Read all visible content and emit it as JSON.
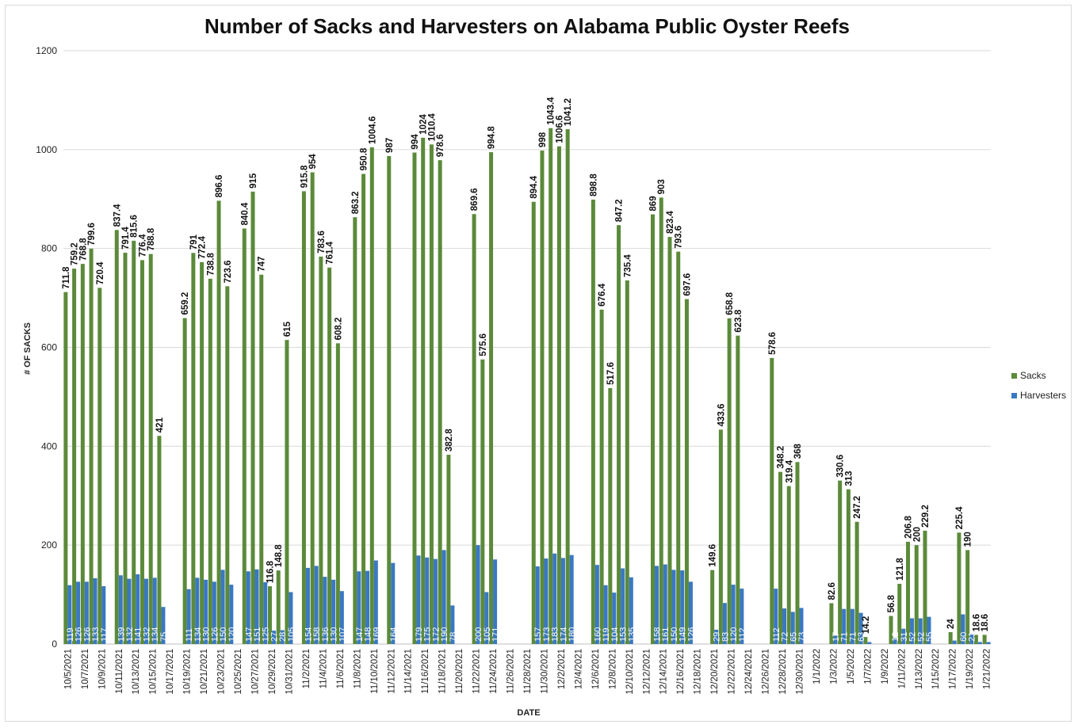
{
  "chart_data": {
    "type": "bar",
    "title": "Number of Sacks and Harvesters on Alabama Public Oyster Reefs",
    "xlabel": "DATE",
    "ylabel": "# OF SACKS",
    "ylim": [
      0,
      1200
    ],
    "yticks": [
      0,
      200,
      400,
      600,
      800,
      1000,
      1200
    ],
    "grid": true,
    "legend_position": "right",
    "colors": {
      "Sacks": "#5b8a3a",
      "Harvesters": "#3a78c2"
    },
    "categories": [
      "10/5/2021",
      "10/6/2021",
      "10/7/2021",
      "10/8/2021",
      "10/9/2021",
      "10/10/2021",
      "10/11/2021",
      "10/12/2021",
      "10/13/2021",
      "10/14/2021",
      "10/15/2021",
      "10/16/2021",
      "10/17/2021",
      "10/18/2021",
      "10/19/2021",
      "10/20/2021",
      "10/21/2021",
      "10/22/2021",
      "10/23/2021",
      "10/24/2021",
      "10/25/2021",
      "10/26/2021",
      "10/27/2021",
      "10/28/2021",
      "10/29/2021",
      "10/30/2021",
      "10/31/2021",
      "11/1/2021",
      "11/2/2021",
      "11/3/2021",
      "11/4/2021",
      "11/5/2021",
      "11/6/2021",
      "11/7/2021",
      "11/8/2021",
      "11/9/2021",
      "11/10/2021",
      "11/11/2021",
      "11/12/2021",
      "11/13/2021",
      "11/14/2021",
      "11/15/2021",
      "11/16/2021",
      "11/17/2021",
      "11/18/2021",
      "11/19/2021",
      "11/20/2021",
      "11/21/2021",
      "11/22/2021",
      "11/23/2021",
      "11/24/2021",
      "11/25/2021",
      "11/26/2021",
      "11/27/2021",
      "11/28/2021",
      "11/29/2021",
      "11/30/2021",
      "12/1/2021",
      "12/2/2021",
      "12/3/2021",
      "12/4/2021",
      "12/5/2021",
      "12/6/2021",
      "12/7/2021",
      "12/8/2021",
      "12/9/2021",
      "12/10/2021",
      "12/11/2021",
      "12/12/2021",
      "12/13/2021",
      "12/14/2021",
      "12/15/2021",
      "12/16/2021",
      "12/17/2021",
      "12/18/2021",
      "12/19/2021",
      "12/20/2021",
      "12/21/2021",
      "12/22/2021",
      "12/23/2021",
      "12/24/2021",
      "12/25/2021",
      "12/26/2021",
      "12/27/2021",
      "12/28/2021",
      "12/29/2021",
      "12/30/2021",
      "12/31/2021",
      "1/1/2022",
      "1/2/2022",
      "1/3/2022",
      "1/4/2022",
      "1/5/2022",
      "1/6/2022",
      "1/7/2022",
      "1/8/2022",
      "1/9/2022",
      "1/10/2022",
      "1/11/2022",
      "1/12/2022",
      "1/13/2022",
      "1/14/2022",
      "1/15/2022",
      "1/16/2022",
      "1/17/2022",
      "1/18/2022",
      "1/19/2022",
      "1/20/2022",
      "1/21/2022"
    ],
    "series": [
      {
        "name": "Sacks",
        "values": [
          711.8,
          759.2,
          768.8,
          799.6,
          720.4,
          null,
          837.4,
          791.4,
          815.6,
          776.4,
          788.8,
          421,
          null,
          null,
          659.2,
          791,
          772.4,
          738.8,
          896.6,
          723.6,
          null,
          840.4,
          915,
          747,
          116.8,
          148.8,
          615,
          null,
          915.8,
          954,
          783.6,
          761.4,
          608.2,
          null,
          863.2,
          950.8,
          1004.6,
          null,
          987,
          null,
          null,
          994,
          1024,
          1010.4,
          978.6,
          382.8,
          null,
          null,
          869.6,
          575.6,
          994.8,
          null,
          null,
          null,
          null,
          894.4,
          998,
          1043.4,
          1006.6,
          1041.2,
          null,
          null,
          898.8,
          676.4,
          517.6,
          847.2,
          735.4,
          null,
          null,
          869,
          903,
          823.4,
          793.6,
          697.6,
          null,
          null,
          149.6,
          433.6,
          658.8,
          623.8,
          null,
          null,
          null,
          578.6,
          348.2,
          319.4,
          368,
          null,
          null,
          null,
          82.6,
          330.6,
          313,
          247.2,
          14.2,
          null,
          null,
          56.8,
          121.8,
          206.8,
          200,
          229.2,
          null,
          null,
          24,
          225.4,
          190,
          18.6,
          18.6
        ],
        "labels": [
          "711.8",
          "759.2",
          "768.8",
          "799.6",
          "720.4",
          null,
          "837.4",
          "791.4",
          "815.6",
          "776.4",
          "788.8",
          "421",
          null,
          null,
          "659.2",
          "791",
          "772.4",
          "738.8",
          "896.6",
          "723.6",
          null,
          "840.4",
          "915",
          "747",
          "116.8",
          "148.8",
          "615",
          null,
          "915.8",
          "954",
          "783.6",
          "761.4",
          "608.2",
          null,
          "863.2",
          "950.8",
          "1004.6",
          null,
          "987",
          null,
          null,
          "994",
          "1024",
          "1010.4",
          "978.6",
          "382.8",
          null,
          null,
          "869.6",
          "575.6",
          "994.8",
          null,
          null,
          null,
          null,
          "894.4",
          "998",
          "1043.4",
          "1006.6",
          "1041.2",
          null,
          null,
          "898.8",
          "676.4",
          "517.6",
          "847.2",
          "735.4",
          null,
          null,
          "869",
          "903",
          "823.4",
          "793.6",
          "697.6",
          null,
          null,
          "149.6",
          "433.6",
          "658.8",
          "623.8",
          null,
          null,
          null,
          "578.6",
          "348.2",
          "319.4",
          "368",
          null,
          null,
          null,
          "82.6",
          "330.6",
          "313",
          "247.2",
          "14.2",
          null,
          null,
          "56.8",
          "121.8",
          "206.8",
          "200",
          "229.2",
          null,
          null,
          "24",
          "225.4",
          "190",
          "18.6",
          "18.6"
        ]
      },
      {
        "name": "Harvesters",
        "values": [
          119,
          126,
          126,
          133,
          117,
          null,
          139,
          132,
          141,
          132,
          134,
          75,
          null,
          null,
          111,
          134,
          130,
          126,
          150,
          120,
          null,
          147,
          151,
          125,
          27,
          28,
          105,
          null,
          154,
          158,
          136,
          130,
          107,
          null,
          147,
          148,
          169,
          null,
          164,
          null,
          null,
          179,
          175,
          172,
          190,
          78,
          null,
          null,
          200,
          105,
          171,
          null,
          null,
          null,
          null,
          157,
          173,
          183,
          174,
          180,
          null,
          null,
          160,
          119,
          104,
          153,
          135,
          null,
          null,
          158,
          161,
          150,
          149,
          126,
          null,
          null,
          29,
          83,
          120,
          112,
          null,
          null,
          null,
          112,
          72,
          65,
          73,
          null,
          null,
          null,
          17,
          71,
          71,
          63,
          4,
          null,
          null,
          12,
          31,
          52,
          52,
          55,
          null,
          null,
          7,
          60,
          21,
          4,
          4
        ],
        "labels": [
          "119",
          "126",
          "126",
          "133",
          "117",
          null,
          "139",
          "132",
          "141",
          "132",
          "134",
          "75",
          null,
          null,
          "111",
          "134",
          "130",
          "126",
          "150",
          "120",
          null,
          "147",
          "151",
          "125",
          "27",
          "28",
          "105",
          null,
          "154",
          "158",
          "136",
          "130",
          "107",
          null,
          "147",
          "148",
          "169",
          null,
          "164",
          null,
          null,
          "179",
          "175",
          "172",
          "190",
          "78",
          null,
          null,
          "200",
          "105",
          "171",
          null,
          null,
          null,
          null,
          "157",
          "173",
          "183",
          "174",
          "180",
          null,
          null,
          "160",
          "119",
          "104",
          "153",
          "135",
          null,
          null,
          "158",
          "161",
          "150",
          "149",
          "126",
          null,
          null,
          "29",
          "83",
          "120",
          "112",
          null,
          null,
          null,
          "112",
          "72",
          "65",
          "73",
          null,
          null,
          null,
          "17",
          "71",
          "71",
          "63",
          "",
          null,
          null,
          "12",
          "31",
          "52",
          "52",
          "55",
          null,
          null,
          "",
          "60",
          "21",
          "",
          ""
        ]
      }
    ]
  }
}
